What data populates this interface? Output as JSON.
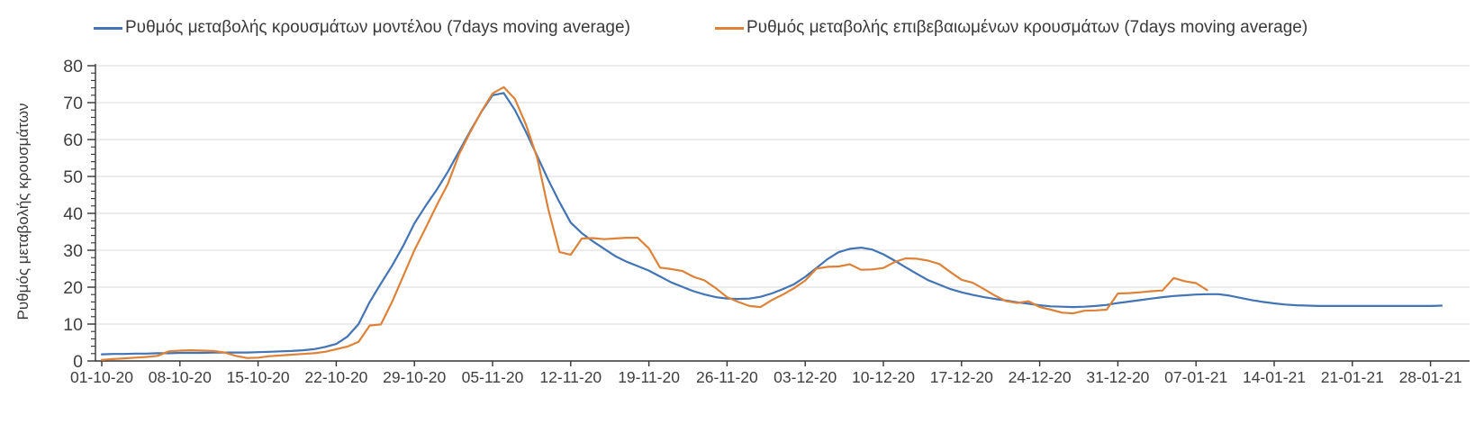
{
  "chart_data": {
    "type": "line",
    "title": "",
    "ylabel": "Ρυθμός μεταβολής κρουσμάτων",
    "xlabel": "",
    "ylim": [
      0,
      80
    ],
    "ytick_step": 10,
    "ytick_minor_step": 2,
    "grid": "horizontal",
    "legend_position": "top",
    "x_start_date": "01-10-20",
    "x_sampling": "daily",
    "x_tick_interval_days": 7,
    "x_tick_labels": [
      "01-10-20",
      "08-10-20",
      "15-10-20",
      "22-10-20",
      "29-10-20",
      "05-11-20",
      "12-11-20",
      "19-11-20",
      "26-11-20",
      "03-12-20",
      "10-12-20",
      "17-12-20",
      "24-12-20",
      "31-12-20",
      "07-01-21",
      "14-01-21",
      "21-01-21",
      "28-01-21"
    ],
    "ytick_labels": [
      "0",
      "10",
      "20",
      "30",
      "40",
      "50",
      "60",
      "70",
      "80"
    ],
    "series": [
      {
        "name": "Ρυθμός μεταβολής κρουσμάτων μοντέλου (7days moving average)",
        "color": "#4374b4",
        "values": [
          1.8,
          1.9,
          1.9,
          2.0,
          2.0,
          2.1,
          2.1,
          2.2,
          2.2,
          2.2,
          2.3,
          2.3,
          2.3,
          2.3,
          2.4,
          2.5,
          2.6,
          2.7,
          2.9,
          3.2,
          3.8,
          4.6,
          6.6,
          10.0,
          16.0,
          21.0,
          25.8,
          31.2,
          37.3,
          42.0,
          46.4,
          51.3,
          56.8,
          62.3,
          67.5,
          72.0,
          72.6,
          68.0,
          62.0,
          55.5,
          49.0,
          43.0,
          37.5,
          34.6,
          32.4,
          30.4,
          28.4,
          26.9,
          25.7,
          24.5,
          22.9,
          21.3,
          20.1,
          18.9,
          18.0,
          17.3,
          16.9,
          16.8,
          16.9,
          17.4,
          18.3,
          19.5,
          20.8,
          22.8,
          25.2,
          27.6,
          29.5,
          30.4,
          30.7,
          30.2,
          28.9,
          27.2,
          25.4,
          23.6,
          21.9,
          20.7,
          19.5,
          18.6,
          17.9,
          17.3,
          16.8,
          16.4,
          15.9,
          15.5,
          15.1,
          14.8,
          14.7,
          14.6,
          14.7,
          14.9,
          15.2,
          15.7,
          16.1,
          16.5,
          16.9,
          17.3,
          17.6,
          17.8,
          18.0,
          18.1,
          18.1,
          17.7,
          17.1,
          16.5,
          16.0,
          15.6,
          15.3,
          15.1,
          15.0,
          14.9,
          14.9,
          14.9,
          14.9,
          14.9,
          14.9,
          14.9,
          14.9,
          14.9,
          14.9,
          14.9,
          15.0
        ]
      },
      {
        "name": "Ρυθμός μεταβολής επιβεβαιωμένων κρουσμάτων (7days moving average)",
        "color": "#dd8239",
        "values": [
          0.3,
          0.5,
          0.7,
          0.9,
          1.1,
          1.4,
          2.6,
          2.8,
          2.9,
          2.8,
          2.7,
          2.3,
          1.4,
          0.8,
          0.9,
          1.3,
          1.5,
          1.7,
          1.9,
          2.1,
          2.5,
          3.2,
          3.9,
          5.2,
          9.6,
          9.9,
          16.0,
          23.0,
          30.0,
          36.0,
          42.2,
          48.0,
          56.0,
          62.0,
          67.6,
          72.5,
          74.2,
          71.0,
          64.0,
          55.0,
          41.0,
          29.5,
          28.8,
          33.2,
          33.3,
          33.0,
          33.2,
          33.4,
          33.4,
          30.5,
          25.3,
          24.9,
          24.4,
          22.8,
          21.8,
          19.7,
          17.3,
          16.0,
          14.9,
          14.6,
          16.5,
          18.0,
          19.7,
          21.8,
          25.0,
          25.5,
          25.6,
          26.2,
          24.7,
          24.8,
          25.2,
          26.8,
          27.8,
          27.7,
          27.2,
          26.3,
          24.1,
          22.0,
          21.2,
          19.5,
          17.7,
          16.2,
          15.7,
          16.2,
          14.6,
          13.9,
          13.1,
          12.9,
          13.6,
          13.7,
          13.9,
          18.3,
          18.4,
          18.6,
          18.9,
          19.1,
          22.5,
          21.6,
          21.1,
          19.2
        ]
      }
    ],
    "colors": {
      "gridline": "#d9d9d9",
      "axis": "#333333",
      "tick_text": "#3f3f3f"
    }
  }
}
